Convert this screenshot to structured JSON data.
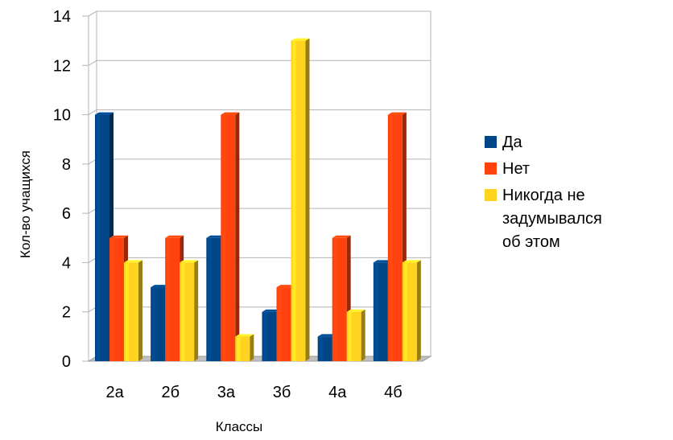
{
  "chart_data": {
    "type": "bar",
    "categories": [
      "2а",
      "2б",
      "3а",
      "3б",
      "4а",
      "4б"
    ],
    "series": [
      {
        "name": "Да",
        "values": [
          10,
          3,
          5,
          2,
          1,
          4
        ],
        "color": "#004586"
      },
      {
        "name": "Нет",
        "values": [
          5,
          5,
          10,
          3,
          5,
          10
        ],
        "color": "#ff420e"
      },
      {
        "name": "Никогда не задумывался об этом",
        "values": [
          4,
          4,
          1,
          13,
          2,
          4
        ],
        "color": "#ffd320"
      }
    ],
    "xlabel": "Классы",
    "ylabel": "Кол-во учащихся",
    "ylim": [
      0,
      14
    ],
    "yticks": [
      0,
      2,
      4,
      6,
      8,
      10,
      12,
      14
    ],
    "grid": true,
    "legend_position": "right",
    "style": "3d"
  }
}
